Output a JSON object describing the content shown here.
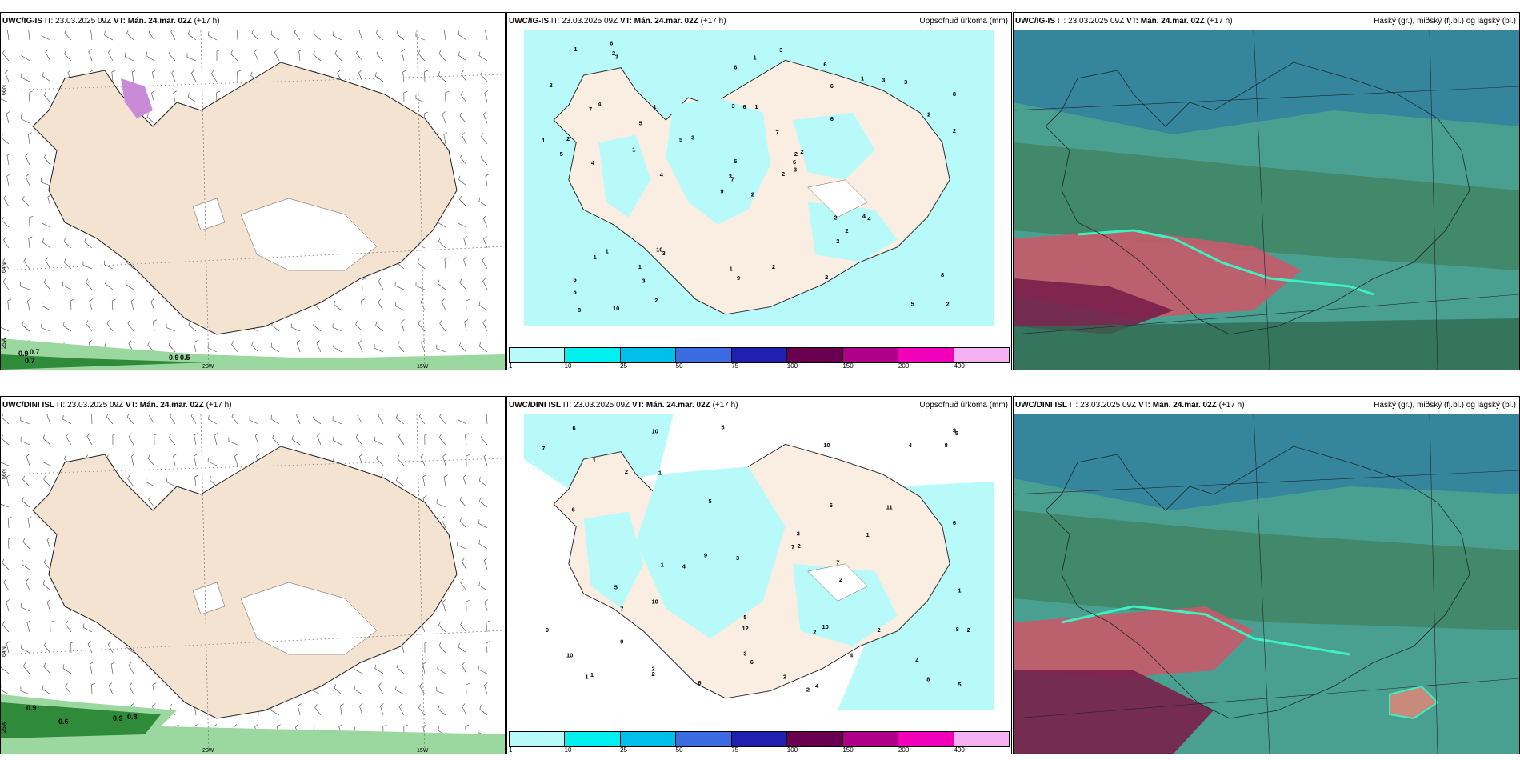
{
  "rows": [
    {
      "model": "UWC/IG-IS",
      "it_label": "IT:",
      "it_value": "23.03.2025 09Z",
      "vt_label": "VT:",
      "vt_value": "Mán. 24.mar. 02Z",
      "lead": "(+17 h)"
    },
    {
      "model": "UWC/DINI ISL",
      "it_label": "IT:",
      "it_value": "23.03.2025 09Z",
      "vt_label": "VT:",
      "vt_value": "Mán. 24.mar. 02Z",
      "lead": "(+17 h)"
    }
  ],
  "panel_titles": {
    "precip": "Uppsöfnuð úrkoma (mm)",
    "clouds": "Háský (gr.), miðský (fj.bl.) og lágský (bl.)"
  },
  "wind_map": {
    "lat_labels": [
      "66N",
      "64N"
    ],
    "lon_labels": [
      "25W",
      "20W",
      "15W"
    ],
    "top_values": [
      "0.9",
      "0.7",
      "0.7",
      "0.9",
      "0.5"
    ],
    "bottom_values": [
      "0.9",
      "0.6",
      "0.9",
      "0.8"
    ]
  },
  "precip_legend": {
    "ticks": [
      "1",
      "10",
      "25",
      "50",
      "75",
      "100",
      "150",
      "200",
      "400"
    ],
    "colors": [
      "#b8fafa",
      "#00f0f0",
      "#00bfe8",
      "#3a6be0",
      "#2020b0",
      "#6a0050",
      "#b0008a",
      "#f000b8",
      "#f4b0f0"
    ]
  },
  "precip_top_values": [
    "2",
    "7",
    "7",
    "5",
    "2",
    "3",
    "6",
    "1",
    "6",
    "2",
    "3",
    "2",
    "4",
    "8",
    "9",
    "6",
    "10",
    "3",
    "7",
    "1",
    "3",
    "5",
    "3",
    "6",
    "2",
    "4",
    "4",
    "6",
    "5",
    "2",
    "2",
    "3",
    "1",
    "6",
    "1",
    "1",
    "10",
    "5",
    "8",
    "4",
    "3",
    "5",
    "1",
    "2",
    "2",
    "1",
    "6",
    "8",
    "9",
    "3",
    "1",
    "2",
    "2",
    "2",
    "2",
    "1",
    "2",
    "1",
    "2",
    "3",
    "1",
    "4",
    "2",
    "5",
    "3",
    "6"
  ],
  "precip_bottom_values": [
    "6",
    "2",
    "2",
    "4",
    "10",
    "1",
    "1",
    "8",
    "5",
    "5",
    "4",
    "6",
    "9",
    "12",
    "10",
    "7",
    "6",
    "2",
    "4",
    "7",
    "2",
    "5",
    "3",
    "1",
    "11",
    "5",
    "9",
    "7",
    "6",
    "2",
    "3",
    "4",
    "5",
    "8",
    "9",
    "7",
    "8",
    "10",
    "6",
    "4",
    "2",
    "1",
    "2",
    "1",
    "1",
    "10",
    "1",
    "2",
    "2",
    "3",
    "3",
    "6",
    "5",
    "2",
    "10"
  ]
}
